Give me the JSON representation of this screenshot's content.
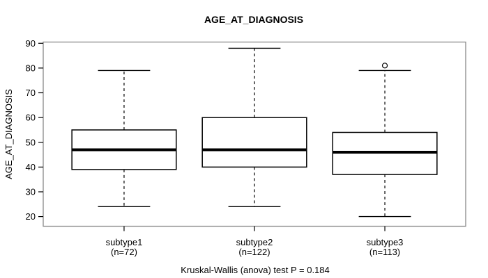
{
  "chart_data": {
    "type": "boxplot",
    "title": "AGE_AT_DIAGNOSIS",
    "ylabel": "AGE_AT_DIAGNOSIS",
    "xlabel": "",
    "footer_note": "Kruskal-Wallis (anova) test P = 0.184",
    "y_ticks": [
      20,
      30,
      40,
      50,
      60,
      70,
      80,
      90
    ],
    "ylim": [
      16.1,
      90.5
    ],
    "xlim": [
      0.38,
      3.62
    ],
    "grid": false,
    "box_width_units": 0.8,
    "cap_width_units": 0.4,
    "categories": [
      {
        "label": "subtype1",
        "count_label": "(n=72)",
        "position": 1,
        "stats": {
          "lower_whisker": 24,
          "q1": 39,
          "median": 47,
          "q3": 55,
          "upper_whisker": 79
        },
        "outliers": []
      },
      {
        "label": "subtype2",
        "count_label": "(n=122)",
        "position": 2,
        "stats": {
          "lower_whisker": 24,
          "q1": 40,
          "median": 47,
          "q3": 60,
          "upper_whisker": 88
        },
        "outliers": []
      },
      {
        "label": "subtype3",
        "count_label": "(n=113)",
        "position": 3,
        "stats": {
          "lower_whisker": 20,
          "q1": 37,
          "median": 46,
          "q3": 54,
          "upper_whisker": 79
        },
        "outliers": [
          81
        ]
      }
    ],
    "colors": {
      "line": "#000000",
      "frame": "#888888",
      "background": "#ffffff",
      "text": "#000000"
    }
  }
}
